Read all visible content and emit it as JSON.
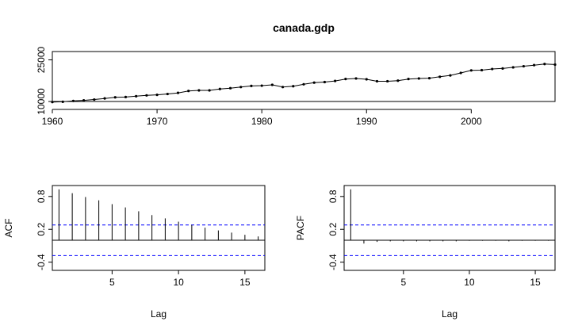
{
  "chart_data": [
    {
      "type": "line",
      "title": "canada.gdp",
      "xlabel": "",
      "ylabel": "",
      "xlim": [
        1960,
        2008
      ],
      "ylim": [
        10000,
        28000
      ],
      "x_ticks": [
        1960,
        1970,
        1980,
        1990,
        2000
      ],
      "y_ticks": [
        10000,
        25000
      ],
      "markers": true,
      "x": [
        1960,
        1961,
        1962,
        1963,
        1964,
        1965,
        1966,
        1967,
        1968,
        1969,
        1970,
        1971,
        1972,
        1973,
        1974,
        1975,
        1976,
        1977,
        1978,
        1979,
        1980,
        1981,
        1982,
        1983,
        1984,
        1985,
        1986,
        1987,
        1988,
        1989,
        1990,
        1991,
        1992,
        1993,
        1994,
        1995,
        1996,
        1997,
        1998,
        1999,
        2000,
        2001,
        2002,
        2003,
        2004,
        2005,
        2006,
        2007,
        2008
      ],
      "y": [
        9800,
        9900,
        10200,
        10400,
        10700,
        11100,
        11500,
        11600,
        11900,
        12200,
        12400,
        12700,
        13100,
        13800,
        14000,
        14000,
        14500,
        14800,
        15200,
        15600,
        15700,
        16000,
        15200,
        15500,
        16200,
        16800,
        17000,
        17400,
        18100,
        18300,
        18000,
        17300,
        17300,
        17500,
        18100,
        18300,
        18400,
        18900,
        19400,
        20300,
        21200,
        21300,
        21700,
        21900,
        22300,
        22700,
        23100,
        23500,
        23300
      ]
    },
    {
      "type": "bar",
      "title": "",
      "xlabel": "Lag",
      "ylabel": "ACF",
      "xlim": [
        0.5,
        16.5
      ],
      "ylim": [
        -0.55,
        1.0
      ],
      "x_ticks": [
        5,
        10,
        15
      ],
      "y_ticks": [
        -0.4,
        0.2,
        0.8
      ],
      "lags": [
        1,
        2,
        3,
        4,
        5,
        6,
        7,
        8,
        9,
        10,
        11,
        12,
        13,
        14,
        15,
        16
      ],
      "values": [
        0.93,
        0.86,
        0.79,
        0.73,
        0.66,
        0.6,
        0.53,
        0.46,
        0.4,
        0.34,
        0.28,
        0.23,
        0.18,
        0.14,
        0.1,
        0.07
      ],
      "ci": 0.28
    },
    {
      "type": "bar",
      "title": "",
      "xlabel": "Lag",
      "ylabel": "PACF",
      "xlim": [
        0.5,
        16.5
      ],
      "ylim": [
        -0.55,
        1.0
      ],
      "x_ticks": [
        5,
        10,
        15
      ],
      "y_ticks": [
        -0.4,
        0.2,
        0.8
      ],
      "lags": [
        1,
        2,
        3,
        4,
        5,
        6,
        7,
        8,
        9,
        10,
        11,
        12,
        13,
        14,
        15,
        16
      ],
      "values": [
        0.93,
        -0.06,
        -0.03,
        -0.02,
        -0.02,
        -0.02,
        -0.02,
        -0.02,
        -0.02,
        -0.01,
        -0.01,
        -0.01,
        -0.02,
        -0.01,
        -0.01,
        -0.01
      ],
      "ci": 0.28
    }
  ]
}
